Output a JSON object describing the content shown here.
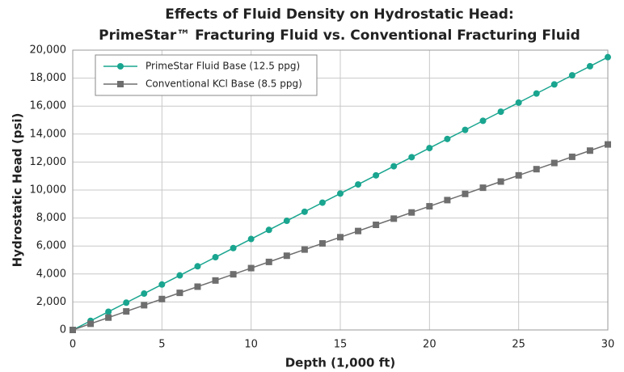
{
  "chart_data": {
    "type": "line",
    "title": [
      "Effects of Fluid Density on Hydrostatic Head:",
      "PrimeStar™ Fracturing Fluid vs. Conventional Fracturing Fluid"
    ],
    "x_label": "Depth (1,000 ft)",
    "y_label": "Hydrostatic Head (psi)",
    "x": [
      0,
      1,
      2,
      3,
      4,
      5,
      6,
      7,
      8,
      9,
      10,
      11,
      12,
      13,
      14,
      15,
      16,
      17,
      18,
      19,
      20,
      21,
      22,
      23,
      24,
      25,
      26,
      27,
      28,
      29,
      30
    ],
    "series": [
      {
        "name": "PrimeStar Fluid Base (12.5 ppg)",
        "color": "#19a58f",
        "marker": "circle",
        "values": [
          0,
          650,
          1300,
          1950,
          2600,
          3250,
          3900,
          4550,
          5200,
          5850,
          6500,
          7150,
          7800,
          8450,
          9100,
          9750,
          10400,
          11050,
          11700,
          12350,
          13000,
          13650,
          14300,
          14950,
          15600,
          16250,
          16900,
          17550,
          18200,
          18850,
          19500
        ]
      },
      {
        "name": "Conventional KCl Base (8.5 ppg)",
        "color": "#6e6e6e",
        "marker": "square",
        "values": [
          0,
          442,
          884,
          1326,
          1768,
          2210,
          2652,
          3094,
          3536,
          3978,
          4420,
          4862,
          5304,
          5746,
          6188,
          6630,
          7072,
          7514,
          7956,
          8398,
          8840,
          9282,
          9724,
          10166,
          10608,
          11050,
          11492,
          11934,
          12376,
          12818,
          13260
        ]
      }
    ],
    "xlim": [
      0,
      30
    ],
    "xticks": [
      0,
      5,
      10,
      15,
      20,
      25,
      30
    ],
    "ylim": [
      0,
      20000
    ],
    "yticks": [
      0,
      {
        "value": 2000,
        "label": "2,000"
      },
      {
        "value": 4000,
        "label": "4,000"
      },
      {
        "value": 6000,
        "label": "6,000"
      },
      {
        "value": 8000,
        "label": "8,000"
      },
      {
        "value": 10000,
        "label": "10,000"
      },
      {
        "value": 12000,
        "label": "12,000"
      },
      {
        "value": 14000,
        "label": "14,000"
      },
      {
        "value": 16000,
        "label": "16,000"
      },
      {
        "value": 18000,
        "label": "18,000"
      },
      {
        "value": 20000,
        "label": "20,000"
      }
    ],
    "grid": true,
    "legend": "upper-left"
  }
}
